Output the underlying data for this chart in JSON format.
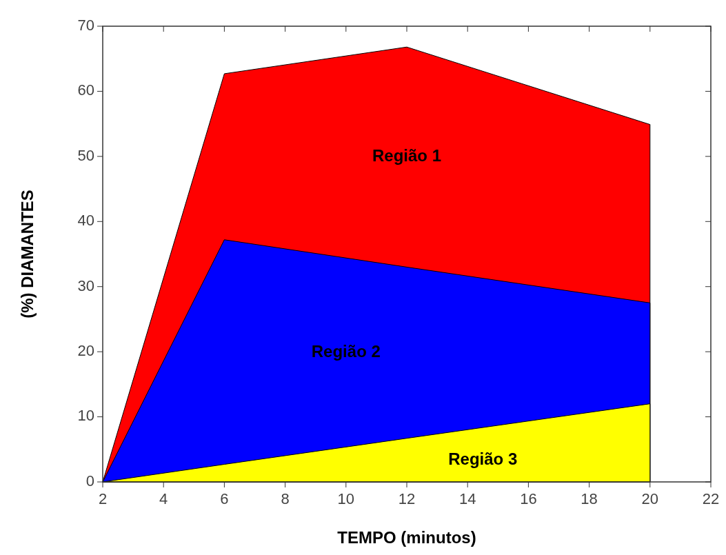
{
  "chart_data": {
    "type": "area",
    "xlabel": "TEMPO (minutos)",
    "ylabel": "(%) DIAMANTES",
    "x": [
      2,
      6,
      12,
      20
    ],
    "series": [
      {
        "name": "Região 1",
        "color": "#ff0000",
        "values": [
          0,
          62.7,
          66.8,
          54.9
        ]
      },
      {
        "name": "Região 2",
        "color": "#0000ff",
        "values": [
          0,
          37.2,
          33,
          27.5
        ]
      },
      {
        "name": "Região 3",
        "color": "#ffff00",
        "values": [
          0,
          2.7,
          6.7,
          12
        ]
      }
    ],
    "xlim": [
      2,
      22
    ],
    "ylim": [
      0,
      70
    ],
    "xticks": [
      2,
      4,
      6,
      8,
      10,
      12,
      14,
      16,
      18,
      20,
      22
    ],
    "yticks": [
      0,
      10,
      20,
      30,
      40,
      50,
      60,
      70
    ],
    "grid": false
  }
}
